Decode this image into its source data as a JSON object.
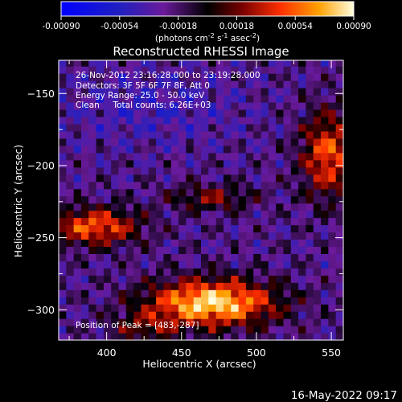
{
  "colorbar": {
    "tick_labels": [
      "-0.00090",
      "-0.00054",
      "-0.00018",
      "0.00018",
      "0.00054",
      "0.00090"
    ],
    "tick_values": [
      -0.0009,
      -0.00054,
      -0.00018,
      0.00018,
      0.00054,
      0.0009
    ],
    "range": [
      -0.0009,
      0.0009
    ],
    "units_main": "(photons cm",
    "units_exp1": "-2",
    "units_s": " s",
    "units_exp2": "-1",
    "units_asec": " asec",
    "units_exp3": "-2",
    "units_close": ")"
  },
  "chart_data": {
    "type": "heatmap",
    "title": "Reconstructed RHESSI Image",
    "xlabel": "Heliocentric X (arcsec)",
    "ylabel": "Heliocentric Y (arcsec)",
    "xlim": [
      368,
      558
    ],
    "ylim": [
      -321,
      -127
    ],
    "x_ticks": [
      400,
      450,
      500,
      550
    ],
    "y_ticks": [
      -150,
      -200,
      -250,
      -300
    ],
    "annotations": [
      "26-Nov-2012 23:16:28.000 to 23:19:28.000",
      "Detectors: 3F 5F 6F 7F 8F, Att 0",
      "Energy Range: 25.0 - 50.0 keV",
      "Clean     Total counts: 6.26E+03"
    ],
    "peak_label": "Position of Peak = [483,-287]",
    "peak": [
      483,
      -287
    ],
    "sources": [
      {
        "x": 470,
        "y": -295,
        "peak": 0.0009
      },
      {
        "x": 400,
        "y": -240,
        "peak": 0.0006
      },
      {
        "x": 545,
        "y": -190,
        "peak": 0.0006
      }
    ]
  },
  "timestamp": "16-May-2022 09:17"
}
